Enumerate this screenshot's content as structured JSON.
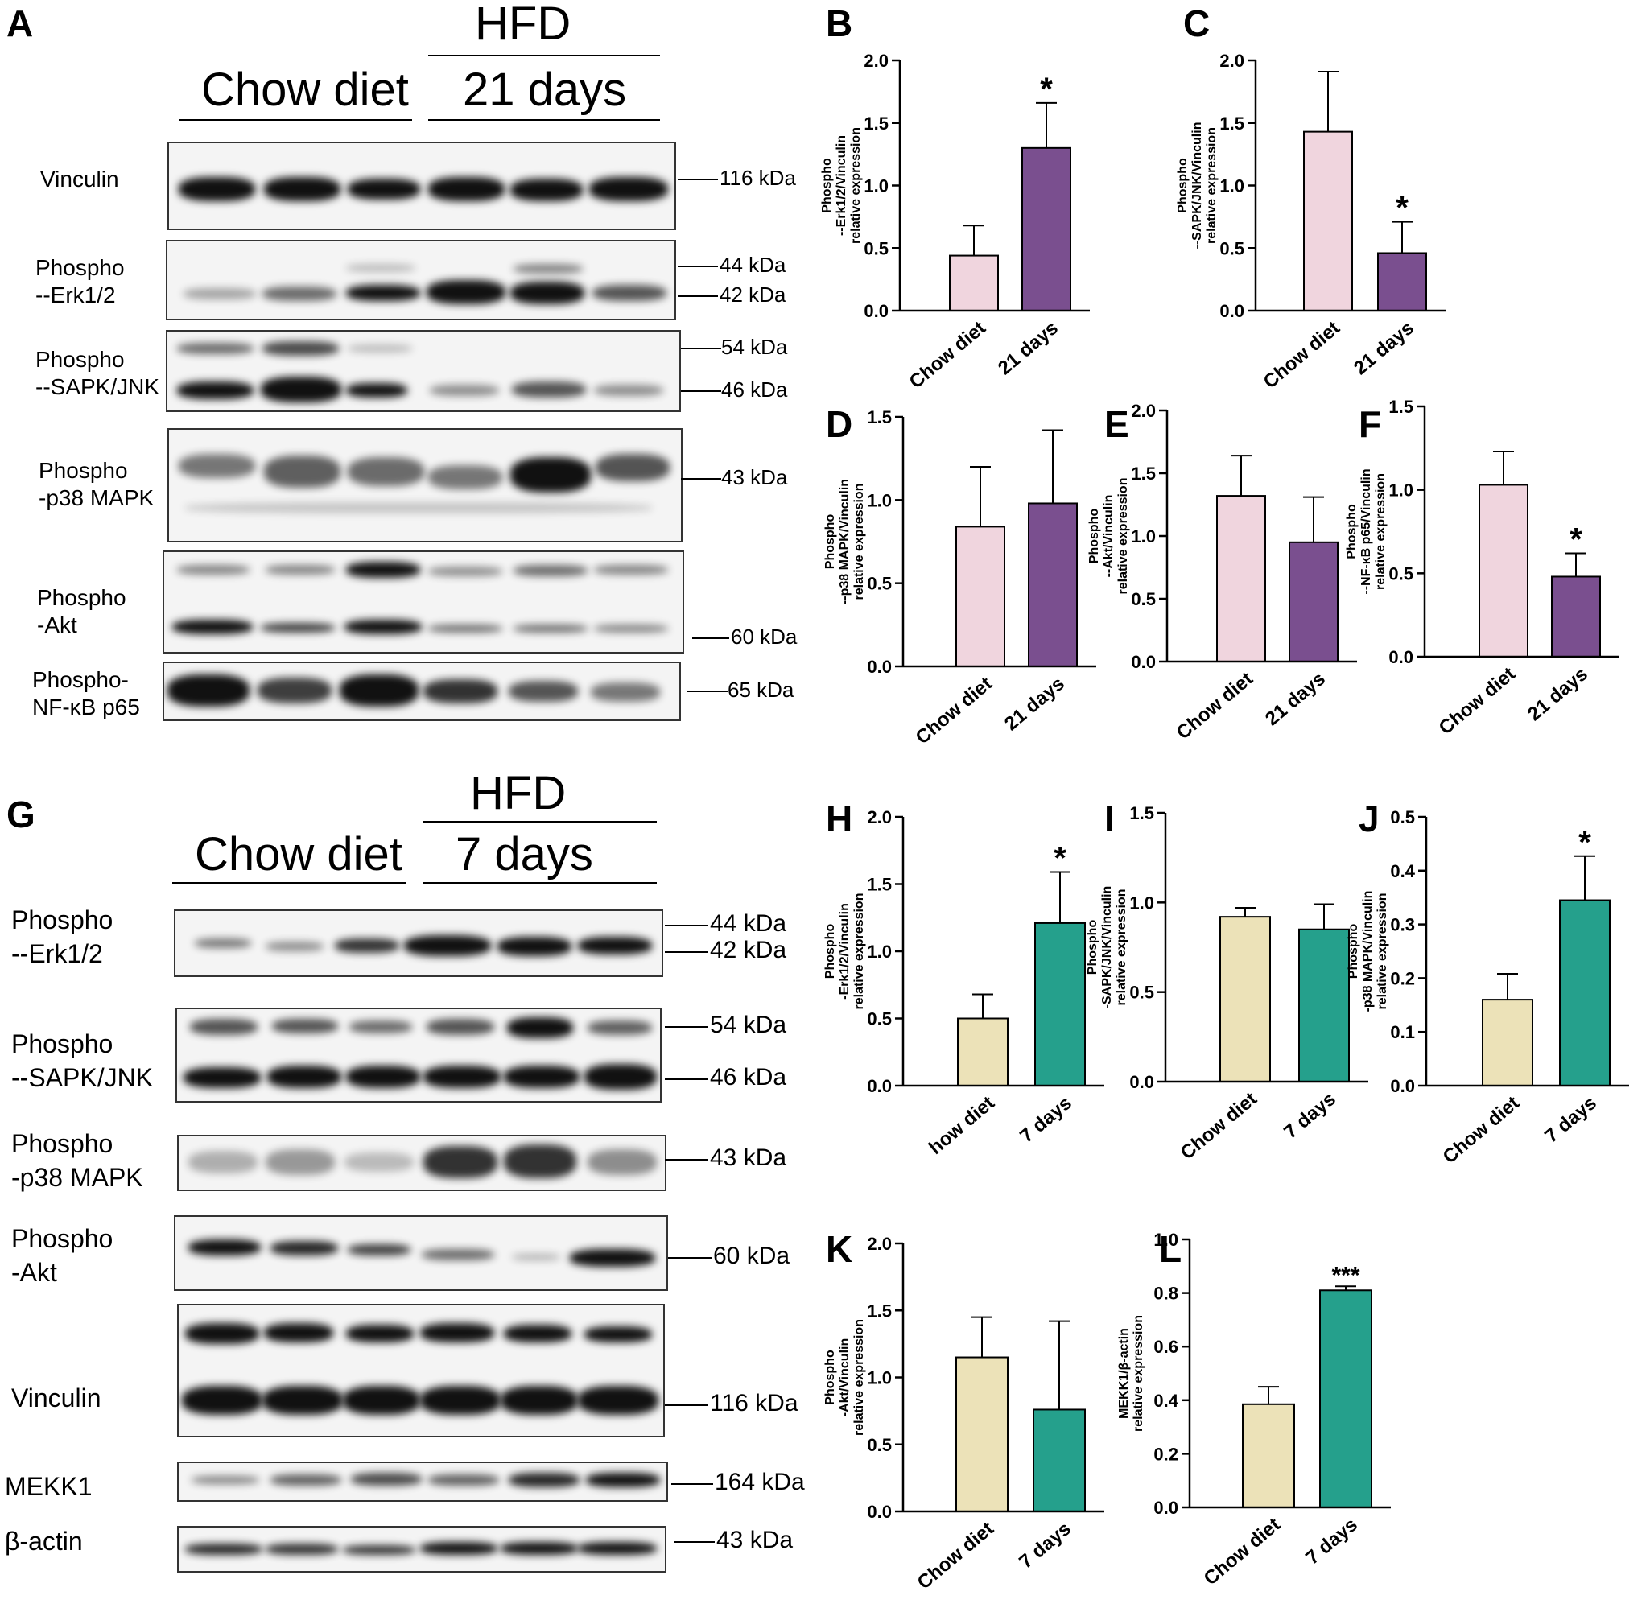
{
  "panels": {
    "A": "A",
    "B": "B",
    "C": "C",
    "D": "D",
    "E": "E",
    "F": "F",
    "G": "G",
    "H": "H",
    "I": "I",
    "J": "J",
    "K": "K",
    "L": "L"
  },
  "blot_top": {
    "hfd": "HFD",
    "chow": "Chow diet",
    "duration": "21 days",
    "rows": [
      {
        "name": "Vinculin",
        "kda": [
          "116 kDa"
        ]
      },
      {
        "name": "Phospho\n--Erk1/2",
        "kda": [
          "44 kDa",
          "42 kDa"
        ]
      },
      {
        "name": "Phospho\n--SAPK/JNK",
        "kda": [
          "54 kDa",
          "46 kDa"
        ]
      },
      {
        "name": "Phospho\n-p38 MAPK",
        "kda": [
          "43 kDa"
        ]
      },
      {
        "name": "Phospho\n-Akt",
        "kda": [
          "60 kDa"
        ]
      },
      {
        "name": "Phospho-\nNF-κB p65",
        "kda": [
          "65 kDa"
        ]
      }
    ]
  },
  "blot_bottom": {
    "hfd": "HFD",
    "chow": "Chow diet",
    "duration": "7 days",
    "rows": [
      {
        "name": "Phospho\n--Erk1/2",
        "kda": [
          "44 kDa",
          "42 kDa"
        ]
      },
      {
        "name": "Phospho\n--SAPK/JNK",
        "kda": [
          "54 kDa",
          "46 kDa"
        ]
      },
      {
        "name": "Phospho\n-p38 MAPK",
        "kda": [
          "43 kDa"
        ]
      },
      {
        "name": "Phospho\n-Akt",
        "kda": [
          "60 kDa"
        ]
      },
      {
        "name": "Vinculin",
        "kda": [
          "116 kDa"
        ]
      },
      {
        "name": "MEKK1",
        "kda": [
          "164 kDa"
        ]
      },
      {
        "name": "β-actin",
        "kda": [
          "43 kDa"
        ]
      }
    ]
  },
  "colors": {
    "chow_21": "#f0d5de",
    "hfd_21": "#7a4f8f",
    "chow_7": "#ece2b8",
    "hfd_7": "#25a08c"
  },
  "chart_data": [
    {
      "panel": "B",
      "type": "bar",
      "categories": [
        "Chow diet",
        "21  days"
      ],
      "values": [
        0.44,
        1.3
      ],
      "errors": [
        0.24,
        0.36
      ],
      "sig": [
        "",
        "*"
      ],
      "ylabel": "Phospho\n--Erk1/2/Vinculin\nrelative expression",
      "ylim": [
        0,
        2.0
      ],
      "ticks": [
        "0.0",
        "0.5",
        "1.0",
        "1.5",
        "2.0"
      ]
    },
    {
      "panel": "C",
      "type": "bar",
      "categories": [
        "Chow diet",
        "21  days"
      ],
      "values": [
        1.43,
        0.46
      ],
      "errors": [
        0.48,
        0.25
      ],
      "sig": [
        "",
        "*"
      ],
      "ylabel": "Phospho\n--SAPK/JNK/Vinculin\nrelative expression",
      "ylim": [
        0,
        2.0
      ],
      "ticks": [
        "0.0",
        "0.5",
        "1.0",
        "1.5",
        "2.0"
      ]
    },
    {
      "panel": "D",
      "type": "bar",
      "categories": [
        "Chow diet",
        "21  days"
      ],
      "values": [
        0.84,
        0.98
      ],
      "errors": [
        0.36,
        0.44
      ],
      "sig": [
        "",
        ""
      ],
      "ylabel": "Phospho\n--p38 MAPK/Vinculin\nrelative expression",
      "ylim": [
        0,
        1.5
      ],
      "ticks": [
        "0.0",
        "0.5",
        "1.0",
        "1.5"
      ]
    },
    {
      "panel": "E",
      "type": "bar",
      "categories": [
        "Chow diet",
        "21  days"
      ],
      "values": [
        1.32,
        0.95
      ],
      "errors": [
        0.32,
        0.36
      ],
      "sig": [
        "",
        ""
      ],
      "ylabel": "Phospho\n--Akt/Vinculin\nrelative expression",
      "ylim": [
        0,
        2.0
      ],
      "ticks": [
        "0.0",
        "0.5",
        "1.0",
        "1.5",
        "2.0"
      ]
    },
    {
      "panel": "F",
      "type": "bar",
      "categories": [
        "Chow diet",
        "21  days"
      ],
      "values": [
        1.03,
        0.48
      ],
      "errors": [
        0.2,
        0.14
      ],
      "sig": [
        "",
        "*"
      ],
      "ylabel": "Phospho\n--NF-κB p65/Vinculin\nrelative expression",
      "ylim": [
        0,
        1.5
      ],
      "ticks": [
        "0.0",
        "0.5",
        "1.0",
        "1.5"
      ]
    },
    {
      "panel": "H",
      "type": "bar",
      "categories": [
        "how diet",
        "7  days"
      ],
      "values": [
        0.5,
        1.21
      ],
      "errors": [
        0.18,
        0.38
      ],
      "sig": [
        "",
        "*"
      ],
      "ylabel": "Phospho\n-Erk1/2/Vinculin\nrelative expression",
      "ylim": [
        0,
        2.0
      ],
      "ticks": [
        "0.0",
        "0.5",
        "1.0",
        "1.5",
        "2.0"
      ]
    },
    {
      "panel": "I",
      "type": "bar",
      "categories": [
        "Chow diet",
        "7  days"
      ],
      "values": [
        0.92,
        0.85
      ],
      "errors": [
        0.05,
        0.14
      ],
      "sig": [
        "",
        ""
      ],
      "ylabel": "Phospho\n-SAPK/JNK/Vinculin\nrelative expression",
      "ylim": [
        0,
        1.5
      ],
      "ticks": [
        "0.0",
        "0.5",
        "1.0",
        "1.5"
      ]
    },
    {
      "panel": "J",
      "type": "bar",
      "categories": [
        "Chow diet",
        "7  days"
      ],
      "values": [
        0.16,
        0.345
      ],
      "errors": [
        0.048,
        0.082
      ],
      "sig": [
        "",
        "*"
      ],
      "ylabel": "Phospho\n-p38 MAPK/Vinculin\nrelative expression",
      "ylim": [
        0,
        0.5
      ],
      "ticks": [
        "0.0",
        "0.1",
        "0.2",
        "0.3",
        "0.4",
        "0.5"
      ]
    },
    {
      "panel": "K",
      "type": "bar",
      "categories": [
        "Chow diet",
        "7  days"
      ],
      "values": [
        1.15,
        0.76
      ],
      "errors": [
        0.3,
        0.66
      ],
      "sig": [
        "",
        ""
      ],
      "ylabel": "Phospho\n-Akt/Vinculin\nrelative expression",
      "ylim": [
        0,
        2.0
      ],
      "ticks": [
        "0.0",
        "0.5",
        "1.0",
        "1.5",
        "2.0"
      ]
    },
    {
      "panel": "L",
      "type": "bar",
      "categories": [
        "Chow diet",
        "7  days"
      ],
      "values": [
        0.385,
        0.81
      ],
      "errors": [
        0.065,
        0.015
      ],
      "sig": [
        "",
        "***"
      ],
      "ylabel": "MEKK1/β-actin\nrelative expression",
      "ylim": [
        0,
        1.0
      ],
      "ticks": [
        "0.0",
        "0.2",
        "0.4",
        "0.6",
        "0.8",
        "1.0"
      ]
    }
  ]
}
